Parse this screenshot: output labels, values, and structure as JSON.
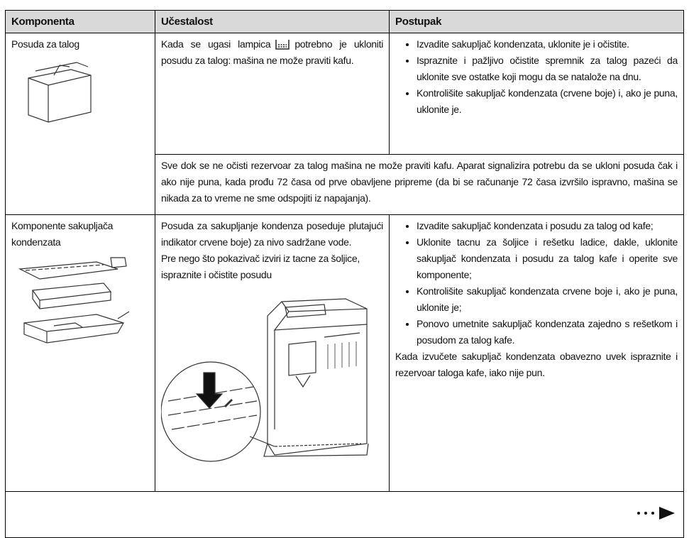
{
  "table": {
    "header": [
      "Komponenta",
      "Učestalost",
      "Postupak"
    ],
    "rows": [
      {
        "component": "Posuda za talog",
        "frequency": [
          "Kada se ugasi lampica",
          "potrebno je ukloniti posudu za talog: mašina ne može praviti kafu."
        ],
        "procedure": [
          "Izvadite sakupljač kondenzata, uklonite je i očistite.",
          "Ispraznite i pažljivo očistite spremnik za talog pazeći da uklonite sve ostatke koji mogu da se nataložе na dnu.",
          "Kontrolišite sakupljač kondenzata (crvene boje) i, ako je puna, uklonite je."
        ],
        "note": "Sve dok se ne očisti rezervoar za talog mašina ne može praviti kafu. Aparat signalizira potrebu da se ukloni posuda čak i ako nije puna, kada prođu 72 časa od prve obavljene pripreme (da bi se računanje 72 časa izvršilo ispravno, mašina se nikada za to vreme ne sme odspojiti iz napajanja)."
      },
      {
        "component": "Komponente sakupljača kondenzata",
        "frequency": [
          "Posuda za sakupljanje kondenza poseduje plutajući indikator crvene boje) za nivo sadržane vode.",
          "Pre nego što pokazivač izviri iz tacne za šoljice, ispraznite i očistite posudu"
        ],
        "procedure": [
          "Izvadite sakupljač kondenzata i posudu za talog od kafe;",
          "Uklonite tacnu za šoljice i rešetku ladice, dakle, uklonite sakupljač kondenzata i posudu za talog kafe i operite sve komponente;",
          "Kontrolišite sakupljač kondenzata crvene boje i, ako je puna, uklonite je;",
          "Ponovo umetnite sakupljač kondenzata zajedno s rešetkom i posudom za talog kafe."
        ],
        "procedure_note": "Kada izvučete sakupljač kondenzata obavezno uvek ispraznite i rezervoar taloga kafe, iako nije pun."
      }
    ]
  }
}
